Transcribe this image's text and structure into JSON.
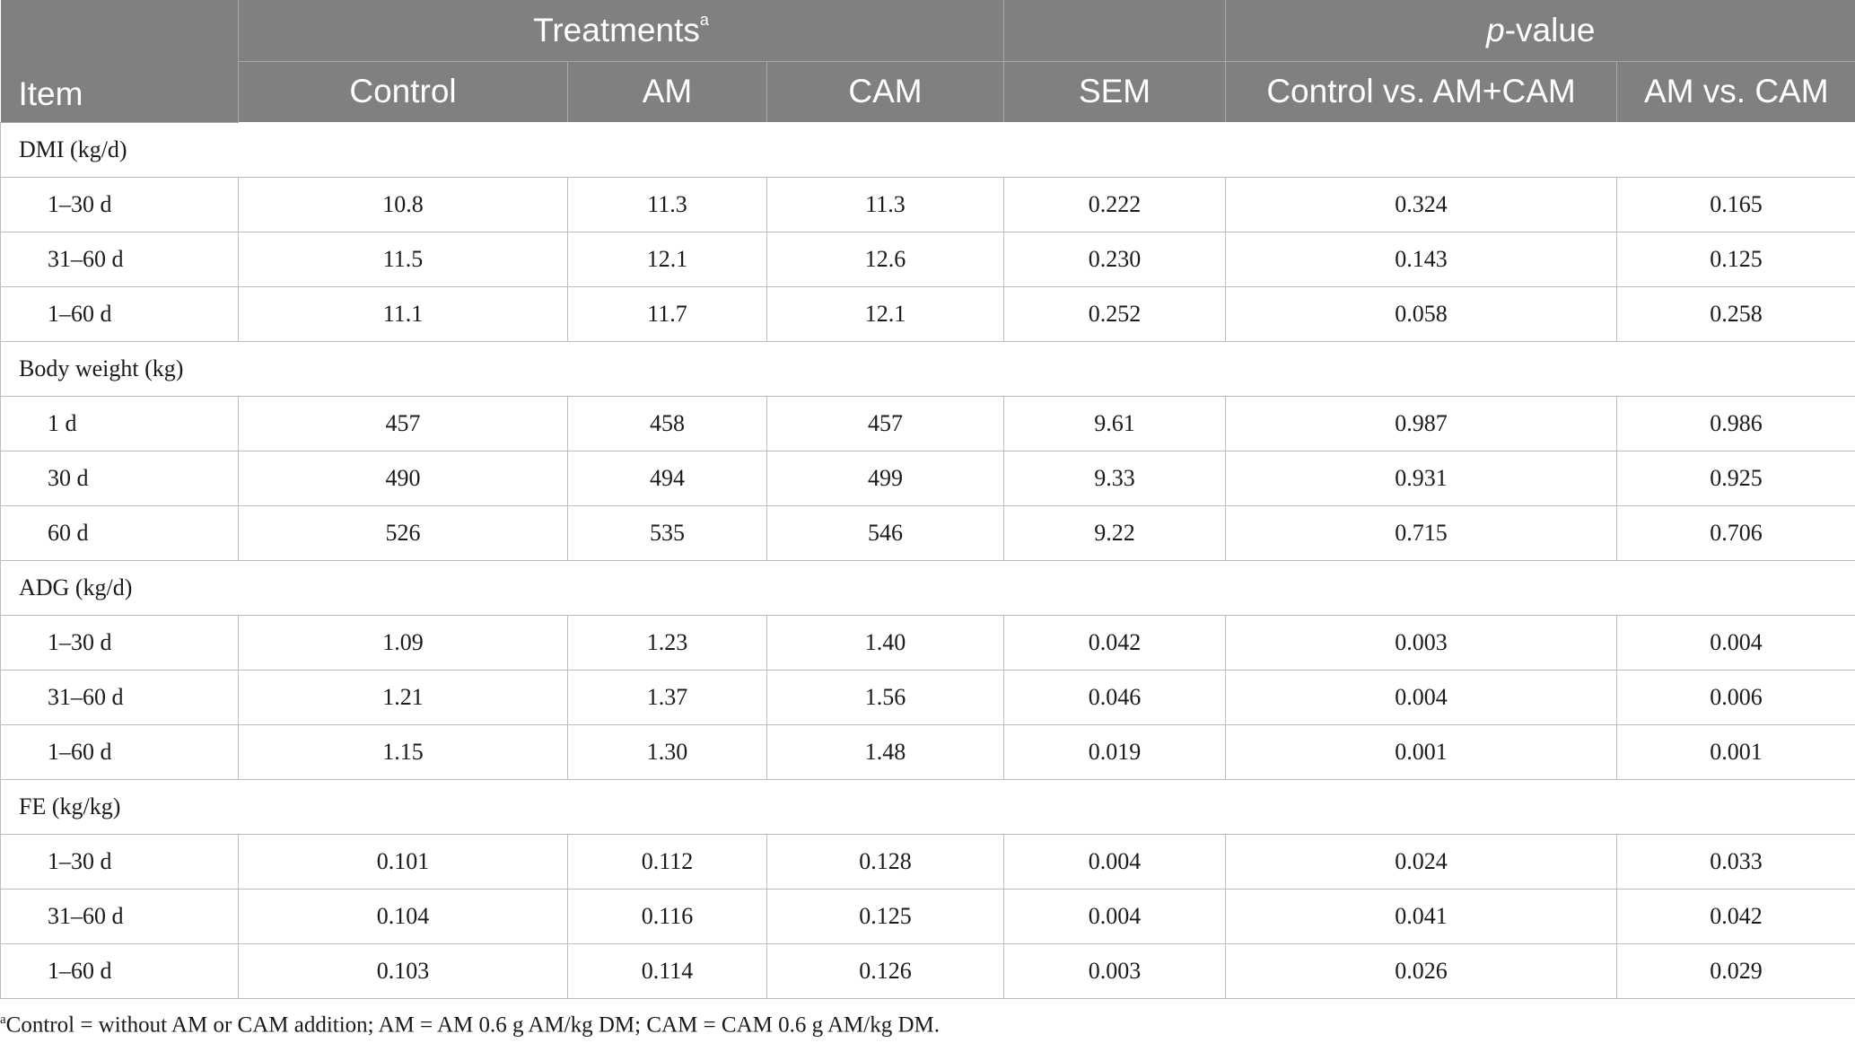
{
  "header": {
    "item": "Item",
    "treatments": "Treatments",
    "treatments_mark": "a",
    "pvalue_italic": "p",
    "pvalue_rest": "-value",
    "control": "Control",
    "am": "AM",
    "cam": "CAM",
    "sem": "SEM",
    "p1": "Control vs. AM+CAM",
    "p2": "AM vs. CAM"
  },
  "groups": [
    {
      "label": "DMI (kg/d)",
      "rows": [
        {
          "item": "1–30 d",
          "control": "10.8",
          "am": "11.3",
          "cam": "11.3",
          "sem": "0.222",
          "p1": "0.324",
          "p2": "0.165"
        },
        {
          "item": "31–60 d",
          "control": "11.5",
          "am": "12.1",
          "cam": "12.6",
          "sem": "0.230",
          "p1": "0.143",
          "p2": "0.125"
        },
        {
          "item": "1–60 d",
          "control": "11.1",
          "am": "11.7",
          "cam": "12.1",
          "sem": "0.252",
          "p1": "0.058",
          "p2": "0.258"
        }
      ]
    },
    {
      "label": "Body weight (kg)",
      "rows": [
        {
          "item": "1 d",
          "control": "457",
          "am": "458",
          "cam": "457",
          "sem": "9.61",
          "p1": "0.987",
          "p2": "0.986"
        },
        {
          "item": "30 d",
          "control": "490",
          "am": "494",
          "cam": "499",
          "sem": "9.33",
          "p1": "0.931",
          "p2": "0.925"
        },
        {
          "item": "60 d",
          "control": "526",
          "am": "535",
          "cam": "546",
          "sem": "9.22",
          "p1": "0.715",
          "p2": "0.706"
        }
      ]
    },
    {
      "label": "ADG (kg/d)",
      "rows": [
        {
          "item": "1–30 d",
          "control": "1.09",
          "am": "1.23",
          "cam": "1.40",
          "sem": "0.042",
          "p1": "0.003",
          "p2": "0.004"
        },
        {
          "item": "31–60 d",
          "control": "1.21",
          "am": "1.37",
          "cam": "1.56",
          "sem": "0.046",
          "p1": "0.004",
          "p2": "0.006"
        },
        {
          "item": "1–60 d",
          "control": "1.15",
          "am": "1.30",
          "cam": "1.48",
          "sem": "0.019",
          "p1": "0.001",
          "p2": "0.001"
        }
      ]
    },
    {
      "label": "FE (kg/kg)",
      "rows": [
        {
          "item": "1–30 d",
          "control": "0.101",
          "am": "0.112",
          "cam": "0.128",
          "sem": "0.004",
          "p1": "0.024",
          "p2": "0.033"
        },
        {
          "item": "31–60 d",
          "control": "0.104",
          "am": "0.116",
          "cam": "0.125",
          "sem": "0.004",
          "p1": "0.041",
          "p2": "0.042"
        },
        {
          "item": "1–60 d",
          "control": "0.103",
          "am": "0.114",
          "cam": "0.126",
          "sem": "0.003",
          "p1": "0.026",
          "p2": "0.029"
        }
      ]
    }
  ],
  "footnote": {
    "mark": "a",
    "text": "Control = without AM or CAM addition; AM = AM 0.6 g AM/kg DM; CAM = CAM 0.6 g AM/kg DM."
  }
}
